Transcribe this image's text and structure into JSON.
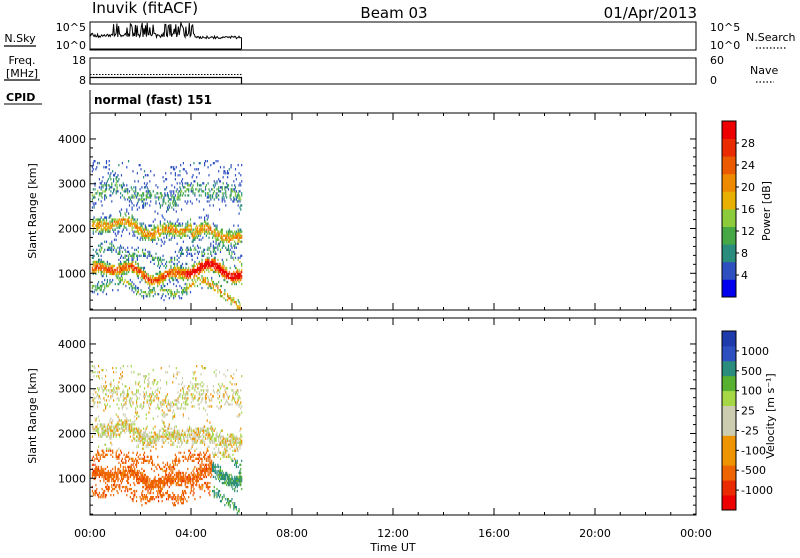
{
  "header": {
    "station": "Inuvik (fitACF)",
    "beam": "Beam 03",
    "date": "01/Apr/2013"
  },
  "noise_panel": {
    "left_label": "N.Sky",
    "left_ticks": [
      "10^5",
      "10^0"
    ],
    "right_ticks": [
      "10^5",
      "10^0"
    ],
    "right_label": "N.Search"
  },
  "freq_panel": {
    "left_label_line1": "Freq.",
    "left_label_line2": "[MHz]",
    "left_ticks": [
      "18",
      "8"
    ],
    "right_ticks": [
      "60",
      "0"
    ],
    "right_label": "Nave",
    "freq_value_mhz": 10.5
  },
  "cpid": {
    "label": "CPID",
    "program": "normal (fast) 151"
  },
  "colors": {
    "power": [
      "#0000ee",
      "#2d4fc0",
      "#2a8c7c",
      "#45a845",
      "#8ccc3c",
      "#e8b000",
      "#ee8a00",
      "#ec5a00",
      "#ea2a00",
      "#ee0000"
    ],
    "velocity": [
      "#ee0000",
      "#ea2a00",
      "#ee6400",
      "#ee9400",
      "#ee9400",
      "#ccccb0",
      "#ccccb0",
      "#a6d846",
      "#58b030",
      "#2a8c7c",
      "#2d4fc0",
      "#1f3aaa"
    ]
  },
  "chart_data": {
    "type": "heatmap",
    "x_ticks": [
      "00:00",
      "04:00",
      "08:00",
      "12:00",
      "16:00",
      "20:00",
      "00:00"
    ],
    "xlabel": "Time UT",
    "xlim_hours": [
      0,
      24
    ],
    "data_end_hour": 6,
    "ylabel": "Slant Range [km]",
    "ylim": [
      180,
      4580
    ],
    "y_ticks": [
      1000,
      2000,
      3000,
      4000
    ],
    "power": {
      "colorbar_label": "Power [dB]",
      "colorbar_ticks": [
        "28",
        "24",
        "20",
        "16",
        "12",
        "8",
        "4"
      ],
      "range": [
        0,
        32
      ]
    },
    "velocity": {
      "colorbar_label": "Velocity [m s⁻¹]",
      "colorbar_ticks": [
        "1000",
        "500",
        "100",
        "25",
        "-25",
        "-100",
        "-500",
        "-1000"
      ]
    }
  }
}
